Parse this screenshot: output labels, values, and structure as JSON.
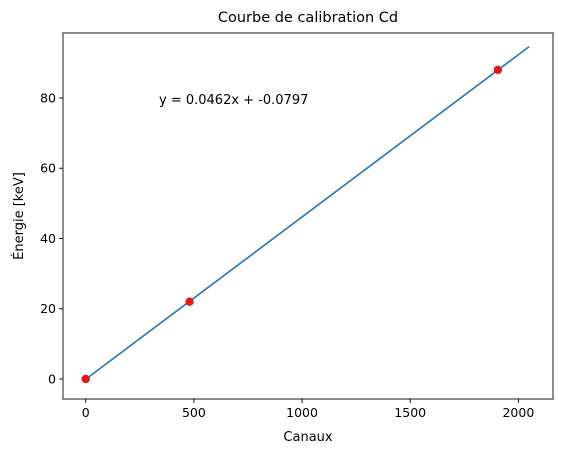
{
  "chart_data": {
    "type": "scatter",
    "title": "Courbe de calibration Cd",
    "xlabel": "Canaux",
    "ylabel": "Énergie [keV]",
    "xlim": [
      -105,
      2160
    ],
    "ylim": [
      -5.7,
      98.5
    ],
    "xticks": [
      0,
      500,
      1000,
      1500,
      2000
    ],
    "yticks": [
      0,
      20,
      40,
      60,
      80
    ],
    "grid": false,
    "annotation": "y = 0.0462x + -0.0797",
    "series": [
      {
        "kind": "points",
        "color": "#e31a1c",
        "x": [
          0,
          480,
          1905
        ],
        "y": [
          0,
          22,
          88
        ]
      },
      {
        "kind": "fit-line",
        "color": "#1f77b4",
        "slope": 0.0462,
        "intercept": -0.0797,
        "x": [
          0,
          2050
        ]
      }
    ]
  }
}
